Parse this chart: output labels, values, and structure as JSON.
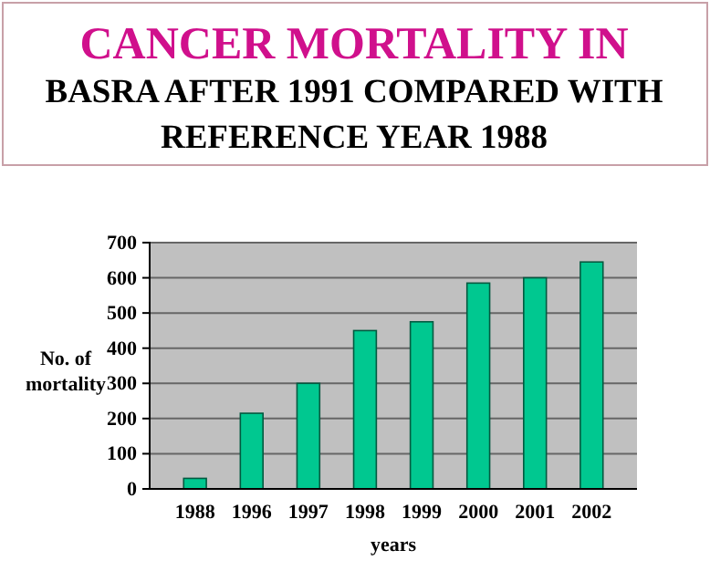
{
  "chart_data": {
    "type": "bar",
    "title": "CANCER MORTALITY IN",
    "subtitle": "BASRA AFTER 1991 COMPARED WITH REFERENCE YEAR 1988",
    "xlabel": "years",
    "ylabel": "No. of mortality",
    "categories": [
      "1988",
      "1996",
      "1997",
      "1998",
      "1999",
      "2000",
      "2001",
      "2002"
    ],
    "values": [
      30,
      215,
      300,
      450,
      475,
      585,
      600,
      645
    ],
    "color": "#00c890",
    "ylim": [
      0,
      700
    ],
    "yticks": [
      0,
      100,
      200,
      300,
      400,
      500,
      600,
      700
    ],
    "grid": "y"
  }
}
